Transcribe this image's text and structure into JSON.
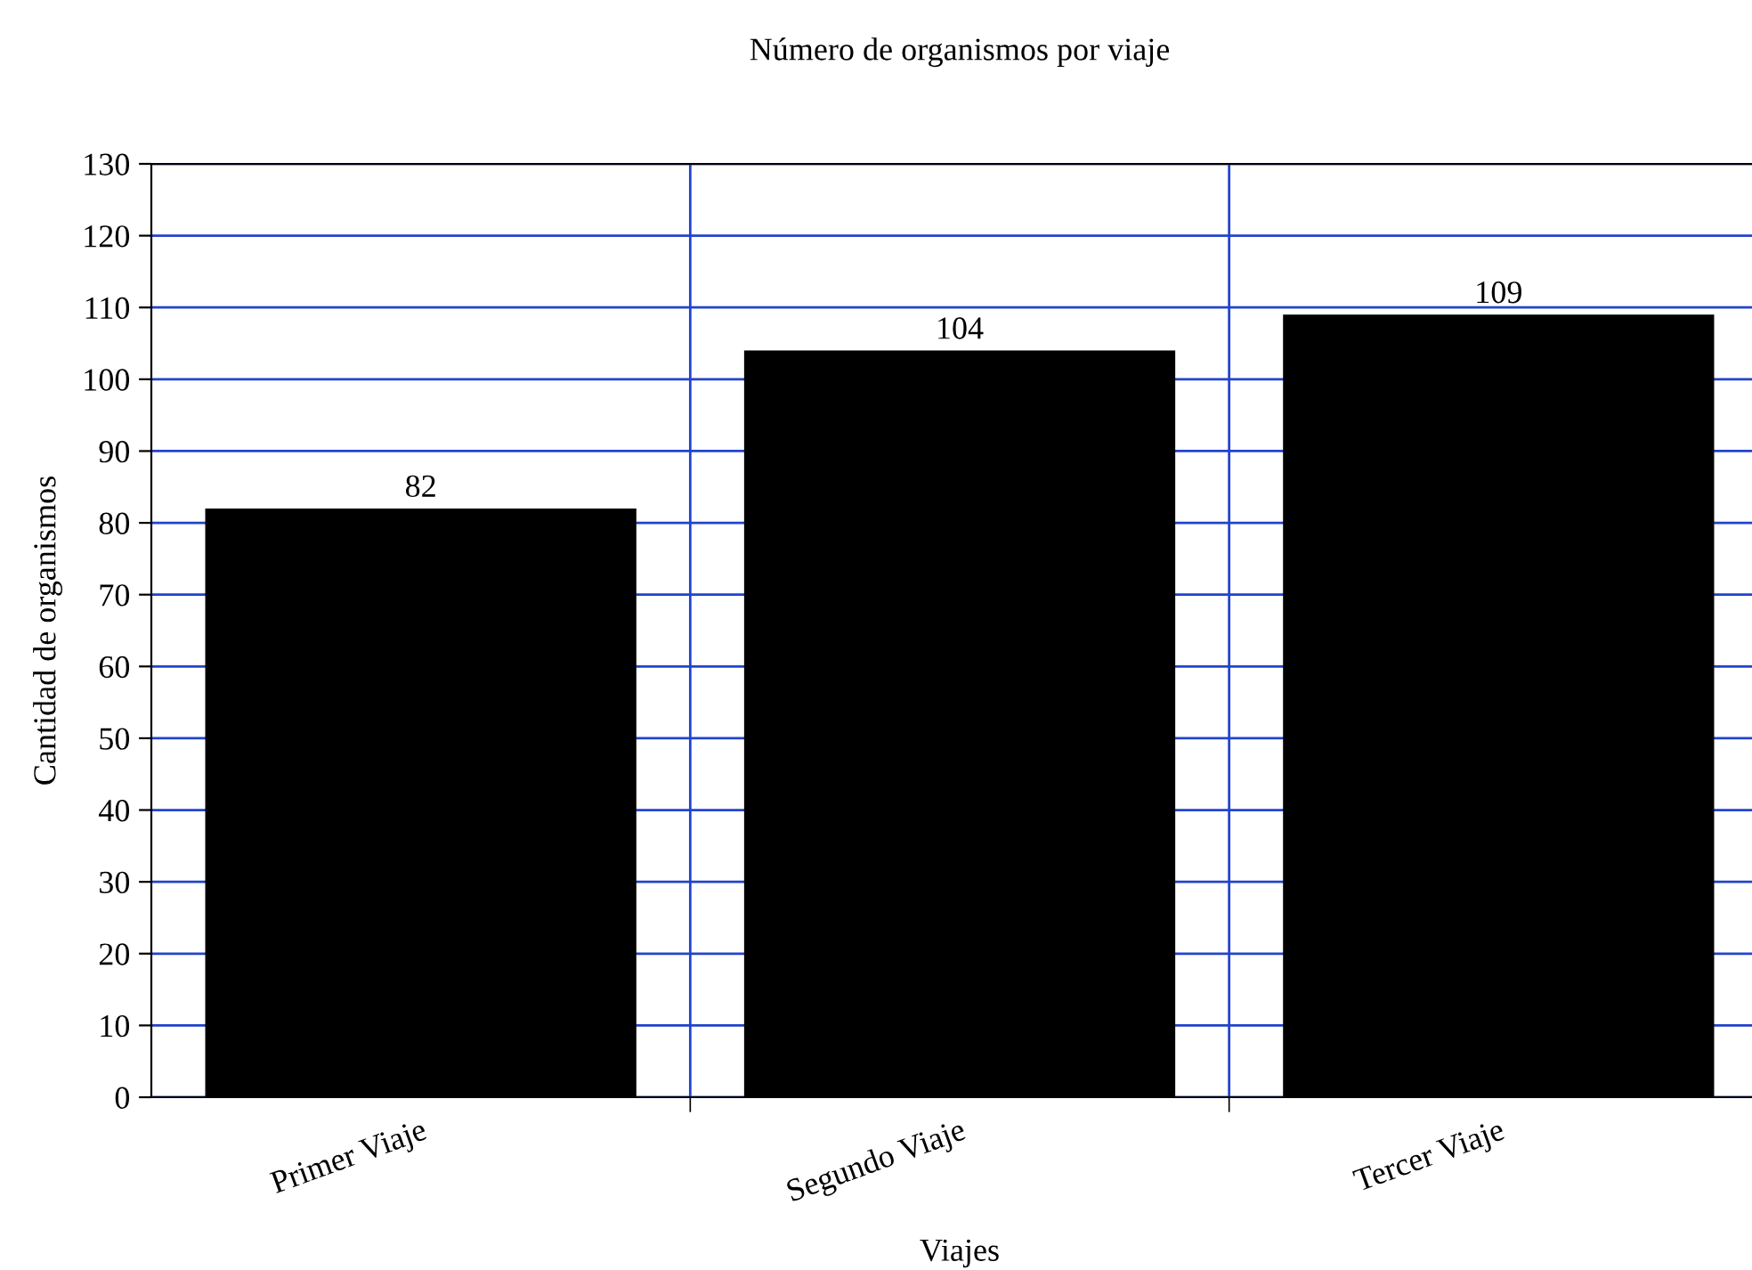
{
  "chart_data": {
    "type": "bar",
    "title": "Número de organismos por viaje",
    "xlabel": "Viajes",
    "ylabel": "Cantidad de organismos",
    "categories": [
      "Primer Viaje",
      "Segundo Viaje",
      "Tercer Viaje"
    ],
    "values": [
      82,
      104,
      109
    ],
    "color": "#000000",
    "ylim": [
      0,
      130
    ],
    "yticks": [
      0,
      10,
      20,
      30,
      40,
      50,
      60,
      70,
      80,
      90,
      100,
      110,
      120,
      130
    ],
    "grid": true,
    "data_labels": true
  }
}
